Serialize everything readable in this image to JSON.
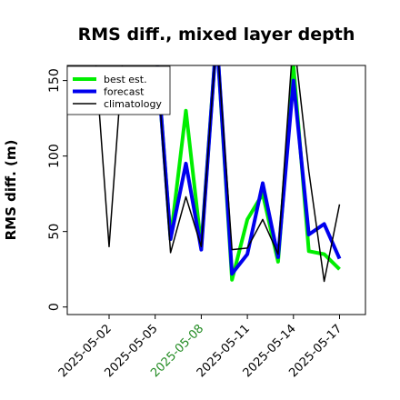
{
  "chart_data": {
    "type": "line",
    "title": "RMS diff., mixed layer depth",
    "xlabel": "",
    "ylabel": "RMS diff. (m)",
    "ylim": [
      -5,
      160
    ],
    "yticks": [
      0,
      50,
      100,
      150
    ],
    "x_ticks": [
      {
        "label": "2025-05-02",
        "color": "#000000"
      },
      {
        "label": "2025-05-05",
        "color": "#000000"
      },
      {
        "label": "2025-05-08",
        "color": "#228B22"
      },
      {
        "label": "2025-05-11",
        "color": "#000000"
      },
      {
        "label": "2025-05-14",
        "color": "#000000"
      },
      {
        "label": "2025-05-17",
        "color": "#000000"
      }
    ],
    "x": [
      "2025-04-30",
      "2025-05-01",
      "2025-05-02",
      "2025-05-03",
      "2025-05-04",
      "2025-05-05",
      "2025-05-06",
      "2025-05-07",
      "2025-05-08",
      "2025-05-09",
      "2025-05-10",
      "2025-05-11",
      "2025-05-12",
      "2025-05-13",
      "2025-05-14",
      "2025-05-15",
      "2025-05-16",
      "2025-05-17"
    ],
    "legend": {
      "position": "top-left"
    },
    "grid": false,
    "series": [
      {
        "name": "best est.",
        "color": "#00ee00",
        "values": [
          null,
          null,
          null,
          null,
          null,
          180,
          45,
          130,
          40,
          180,
          18,
          58,
          75,
          30,
          160,
          37,
          35,
          25
        ]
      },
      {
        "name": "forecast",
        "color": "#0000ee",
        "values": [
          null,
          null,
          null,
          null,
          null,
          180,
          45,
          95,
          38,
          180,
          22,
          35,
          82,
          33,
          150,
          48,
          55,
          32
        ]
      },
      {
        "name": "climatology",
        "color": "#000000",
        "values": [
          null,
          180,
          40,
          180,
          170,
          180,
          36,
          73,
          40,
          180,
          38,
          39,
          58,
          35,
          180,
          90,
          17,
          68
        ]
      }
    ]
  }
}
